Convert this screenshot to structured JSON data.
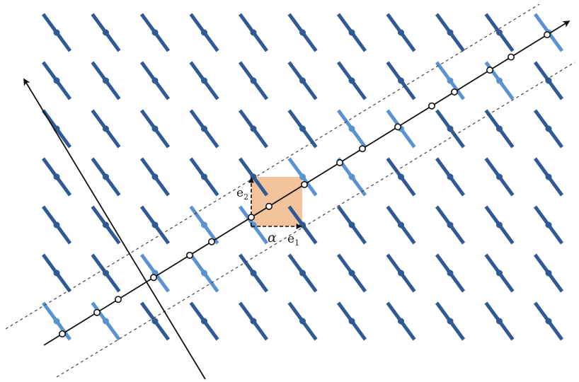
{
  "labels": {
    "e2": {
      "base": "e",
      "sub": "2"
    },
    "e1": {
      "base": "e",
      "sub": "1"
    },
    "alpha": "α"
  },
  "colors": {
    "background": "#ffffff",
    "dark_blue": "#2f5a93",
    "light_blue": "#5b93d1",
    "axis": "#111111",
    "dashed": "#444444",
    "unit_cell_fill": "#f3c39c"
  }
}
